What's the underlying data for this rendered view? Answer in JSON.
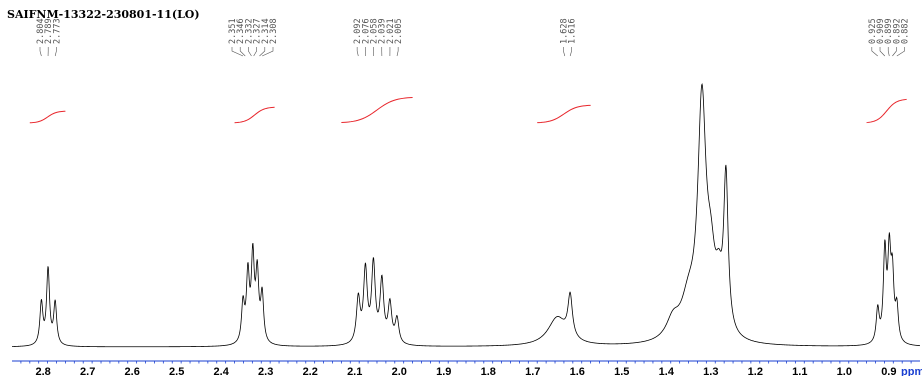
{
  "chart_data": {
    "type": "line",
    "title": "SAIFNM-13322-230801-11(LO)",
    "xlabel": "ppm",
    "ylabel": "",
    "xlim": [
      2.87,
      0.83
    ],
    "x_reversed": true,
    "grid": false,
    "colors": {
      "spectrum": "#000000",
      "integral": "#e8262c",
      "axis": "#1a3fd1",
      "peak_label": "#555555"
    },
    "x_ticks": [
      "2.8",
      "2.7",
      "2.6",
      "2.5",
      "2.4",
      "2.3",
      "2.2",
      "2.1",
      "2.0",
      "1.9",
      "1.8",
      "1.7",
      "1.6",
      "1.5",
      "1.4",
      "1.3",
      "1.2",
      "1.1",
      "1.0",
      "0.9"
    ],
    "peak_labels": [
      "2.804",
      "2.789",
      "2.773",
      "2.351",
      "2.346",
      "2.332",
      "2.327",
      "2.314",
      "2.308",
      "2.092",
      "2.076",
      "2.058",
      "2.039",
      "2.021",
      "2.005",
      "1.628",
      "1.616",
      "0.925",
      "0.909",
      "0.899",
      "0.892",
      "0.882"
    ],
    "peaks": [
      {
        "x": 2.804,
        "h": 0.15,
        "w": 0.004
      },
      {
        "x": 2.789,
        "h": 0.27,
        "w": 0.004
      },
      {
        "x": 2.773,
        "h": 0.15,
        "w": 0.004
      },
      {
        "x": 2.351,
        "h": 0.14,
        "w": 0.004
      },
      {
        "x": 2.34,
        "h": 0.24,
        "w": 0.004
      },
      {
        "x": 2.329,
        "h": 0.3,
        "w": 0.004
      },
      {
        "x": 2.319,
        "h": 0.24,
        "w": 0.004
      },
      {
        "x": 2.308,
        "h": 0.17,
        "w": 0.004
      },
      {
        "x": 2.092,
        "h": 0.16,
        "w": 0.005
      },
      {
        "x": 2.076,
        "h": 0.26,
        "w": 0.005
      },
      {
        "x": 2.058,
        "h": 0.28,
        "w": 0.005
      },
      {
        "x": 2.039,
        "h": 0.22,
        "w": 0.005
      },
      {
        "x": 2.021,
        "h": 0.14,
        "w": 0.005
      },
      {
        "x": 2.005,
        "h": 0.09,
        "w": 0.005
      },
      {
        "x": 1.645,
        "h": 0.1,
        "w": 0.025
      },
      {
        "x": 1.616,
        "h": 0.15,
        "w": 0.006
      },
      {
        "x": 1.385,
        "h": 0.07,
        "w": 0.018
      },
      {
        "x": 1.35,
        "h": 0.13,
        "w": 0.02
      },
      {
        "x": 1.32,
        "h": 0.82,
        "w": 0.011
      },
      {
        "x": 1.3,
        "h": 0.22,
        "w": 0.012
      },
      {
        "x": 1.282,
        "h": 0.14,
        "w": 0.009
      },
      {
        "x": 1.266,
        "h": 0.55,
        "w": 0.006
      },
      {
        "x": 0.925,
        "h": 0.12,
        "w": 0.004
      },
      {
        "x": 0.909,
        "h": 0.32,
        "w": 0.004
      },
      {
        "x": 0.899,
        "h": 0.3,
        "w": 0.004
      },
      {
        "x": 0.892,
        "h": 0.22,
        "w": 0.004
      },
      {
        "x": 0.882,
        "h": 0.12,
        "w": 0.004
      }
    ],
    "integral_regions": [
      {
        "from": 2.83,
        "to": 2.75
      },
      {
        "from": 2.37,
        "to": 2.28
      },
      {
        "from": 2.13,
        "to": 1.97
      },
      {
        "from": 1.69,
        "to": 1.57
      },
      {
        "from": 0.95,
        "to": 0.86
      }
    ]
  }
}
